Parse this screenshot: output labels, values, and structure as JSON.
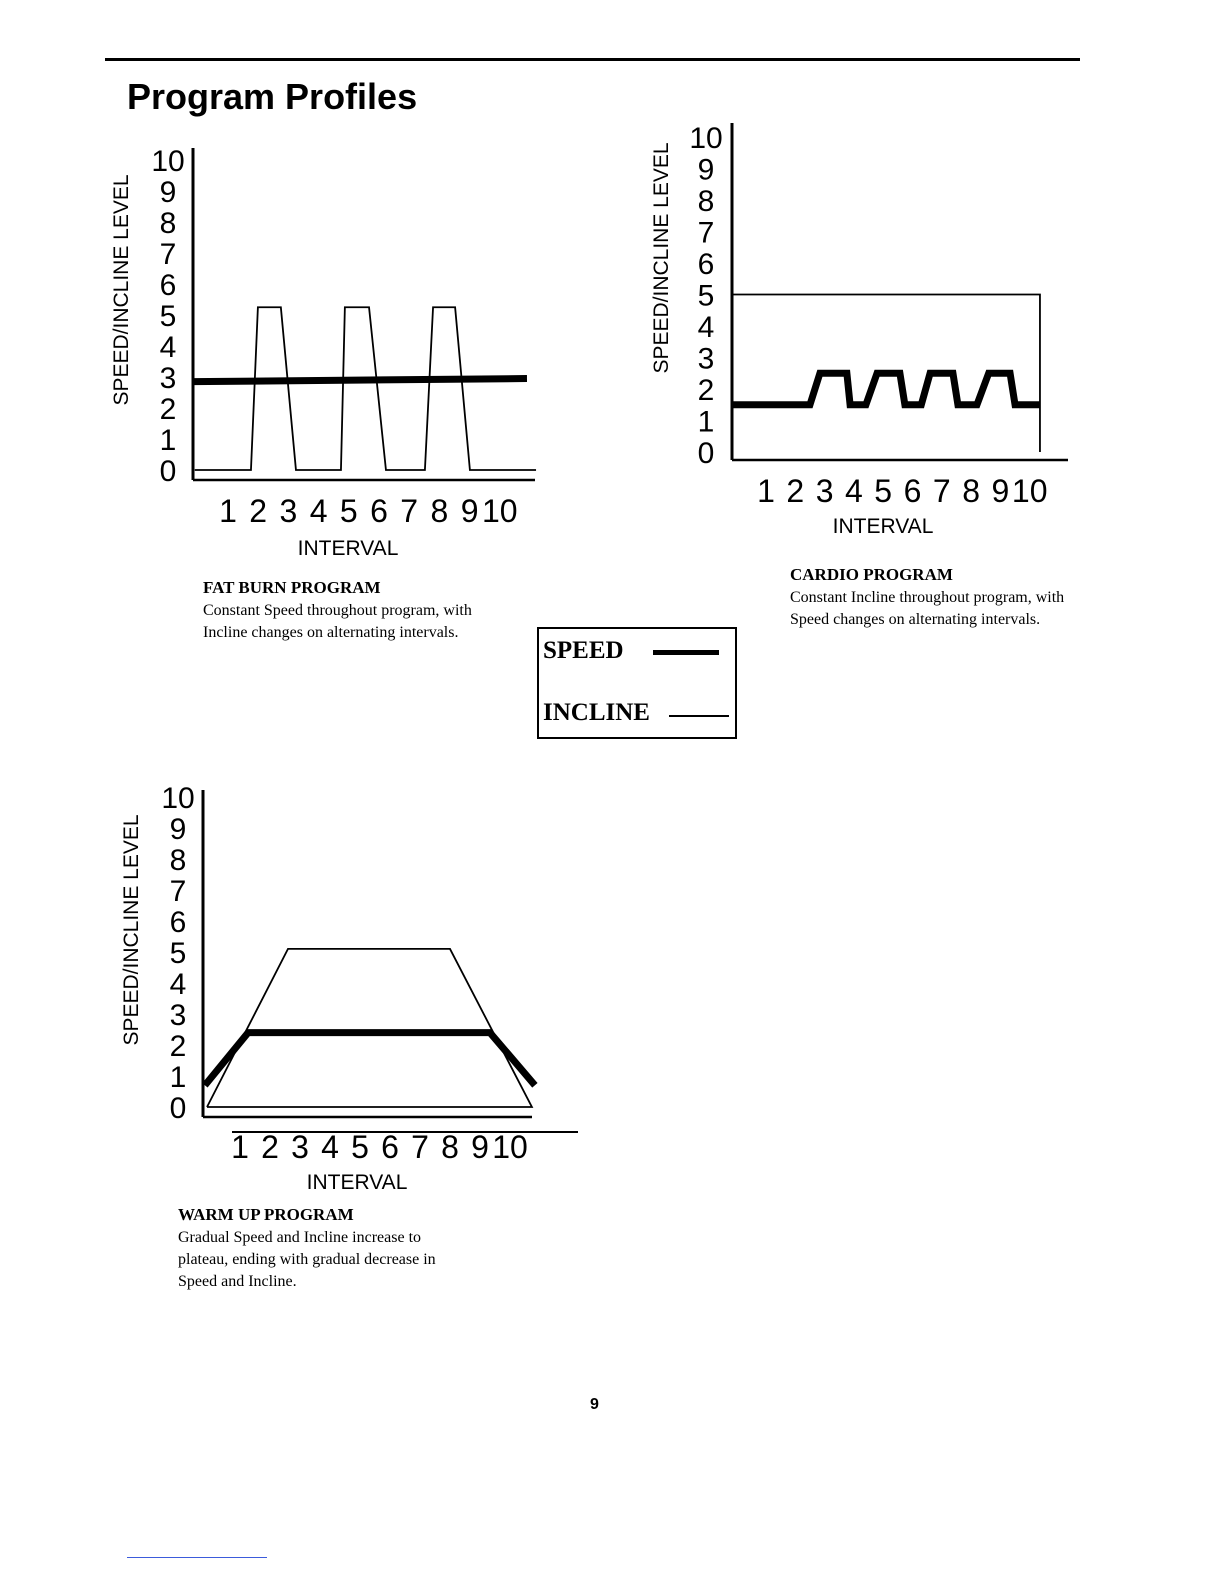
{
  "page": {
    "title": "Program Profiles",
    "page_number": "9"
  },
  "legend": {
    "speed_label": "SPEED",
    "incline_label": "INCLINE"
  },
  "chart_data": [
    {
      "type": "line",
      "name": "fat-burn",
      "ylabel": "SPEED/INCLINE LEVEL",
      "xlabel": "INTERVAL",
      "y_ticks": [
        "0",
        "1",
        "2",
        "3",
        "4",
        "5",
        "6",
        "7",
        "8",
        "9",
        "10"
      ],
      "x_ticks": [
        "1",
        "2",
        "3",
        "4",
        "5",
        "6",
        "7",
        "8",
        "9",
        "10"
      ],
      "ylim": [
        0,
        10
      ],
      "caption_title": "FAT BURN PROGRAM",
      "caption_body": "Constant Speed throughout program, with Incline changes on alternating intervals.",
      "series": [
        {
          "name": "SPEED",
          "style": "thick",
          "points": [
            [
              -0.15,
              2.85
            ],
            [
              10.9,
              2.95
            ]
          ]
        },
        {
          "name": "INCLINE",
          "style": "thin",
          "points": [
            [
              -0.1,
              0
            ],
            [
              1.76,
              0
            ],
            [
              1.99,
              5.25
            ],
            [
              2.75,
              5.25
            ],
            [
              3.25,
              0
            ],
            [
              4.74,
              0
            ],
            [
              4.87,
              5.25
            ],
            [
              5.67,
              5.25
            ],
            [
              6.23,
              0
            ],
            [
              7.52,
              0
            ],
            [
              7.79,
              5.25
            ],
            [
              8.52,
              5.25
            ],
            [
              9.01,
              0
            ],
            [
              11.2,
              0
            ]
          ]
        }
      ]
    },
    {
      "type": "line",
      "name": "cardio",
      "ylabel": "SPEED/INCLINE LEVEL",
      "xlabel": "INTERVAL",
      "y_ticks": [
        "0",
        "1",
        "2",
        "3",
        "4",
        "5",
        "6",
        "7",
        "8",
        "9",
        "10"
      ],
      "x_ticks": [
        "1",
        "2",
        "3",
        "4",
        "5",
        "6",
        "7",
        "8",
        "9",
        "10"
      ],
      "ylim": [
        0,
        10
      ],
      "caption_title": "CARDIO PROGRAM",
      "caption_body": "Constant Incline throughout program, with Speed changes on alternating intervals.",
      "series": [
        {
          "name": "SPEED",
          "style": "thick",
          "points": [
            [
              -0.16,
              1.5
            ],
            [
              2.5,
              1.5
            ],
            [
              2.84,
              2.5
            ],
            [
              3.76,
              2.5
            ],
            [
              3.87,
              1.5
            ],
            [
              4.41,
              1.5
            ],
            [
              4.79,
              2.5
            ],
            [
              5.57,
              2.5
            ],
            [
              5.74,
              1.5
            ],
            [
              6.3,
              1.5
            ],
            [
              6.6,
              2.5
            ],
            [
              7.38,
              2.5
            ],
            [
              7.55,
              1.5
            ],
            [
              8.2,
              1.5
            ],
            [
              8.6,
              2.5
            ],
            [
              9.33,
              2.5
            ],
            [
              9.5,
              1.5
            ],
            [
              10.35,
              1.5
            ]
          ]
        },
        {
          "name": "INCLINE",
          "style": "thin",
          "points": [
            [
              -0.16,
              5
            ],
            [
              10.35,
              5
            ],
            [
              10.35,
              0
            ]
          ]
        }
      ]
    },
    {
      "type": "line",
      "name": "warm-up",
      "ylabel": "SPEED/INCLINE LEVEL",
      "xlabel": "INTERVAL",
      "y_ticks": [
        "0",
        "1",
        "2",
        "3",
        "4",
        "5",
        "6",
        "7",
        "8",
        "9",
        "10"
      ],
      "x_ticks": [
        "1",
        "2",
        "3",
        "4",
        "5",
        "6",
        "7",
        "8",
        "9",
        "10"
      ],
      "ylim": [
        0,
        10
      ],
      "caption_title": "WARM UP PROGRAM",
      "caption_body": "Gradual Speed and Incline increase to plateau, ending with gradual decrease in Speed and Incline.",
      "series": [
        {
          "name": "SPEED",
          "style": "thick",
          "points": [
            [
              -0.17,
              0.7
            ],
            [
              1.27,
              2.4
            ],
            [
              9.33,
              2.4
            ],
            [
              10.83,
              0.7
            ]
          ]
        },
        {
          "name": "INCLINE",
          "style": "thin",
          "points": [
            [
              -0.1,
              0
            ],
            [
              2.6,
              5.1
            ],
            [
              8.0,
              5.1
            ],
            [
              10.73,
              0
            ],
            [
              -0.1,
              0
            ]
          ]
        }
      ]
    }
  ]
}
